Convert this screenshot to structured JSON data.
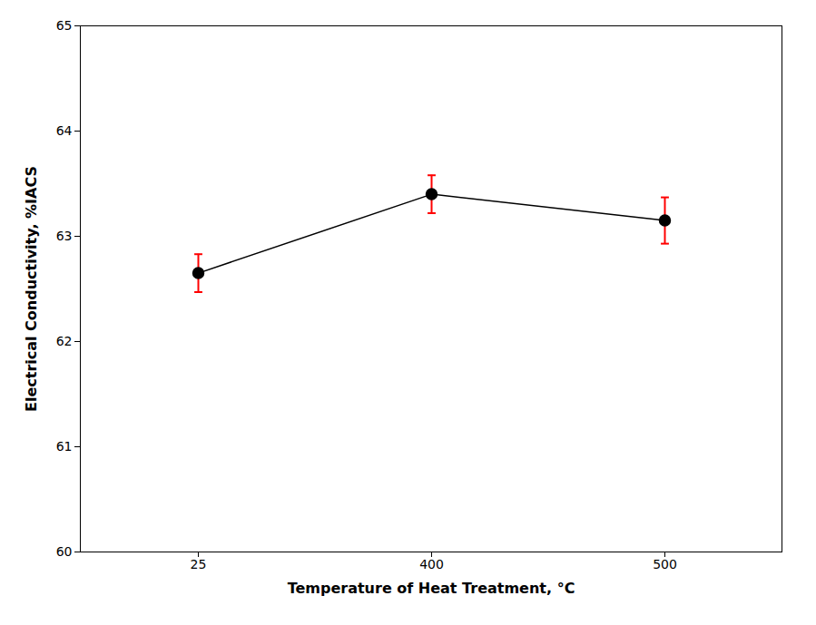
{
  "chart_data": {
    "type": "line",
    "xlabel": "Temperature of Heat Treatment, °C",
    "ylabel": "Electrical Conductivity, %IACS",
    "categories": [
      "25",
      "400",
      "500"
    ],
    "values": [
      62.65,
      63.4,
      63.15
    ],
    "color": "#000000",
    "marker": "circle",
    "error_bars": {
      "values": [
        0.18,
        0.18,
        0.22
      ],
      "color": "#ff0000"
    },
    "ylim": [
      60,
      65
    ],
    "yticks": [
      60,
      61,
      62,
      63,
      64,
      65
    ],
    "grid": false
  }
}
